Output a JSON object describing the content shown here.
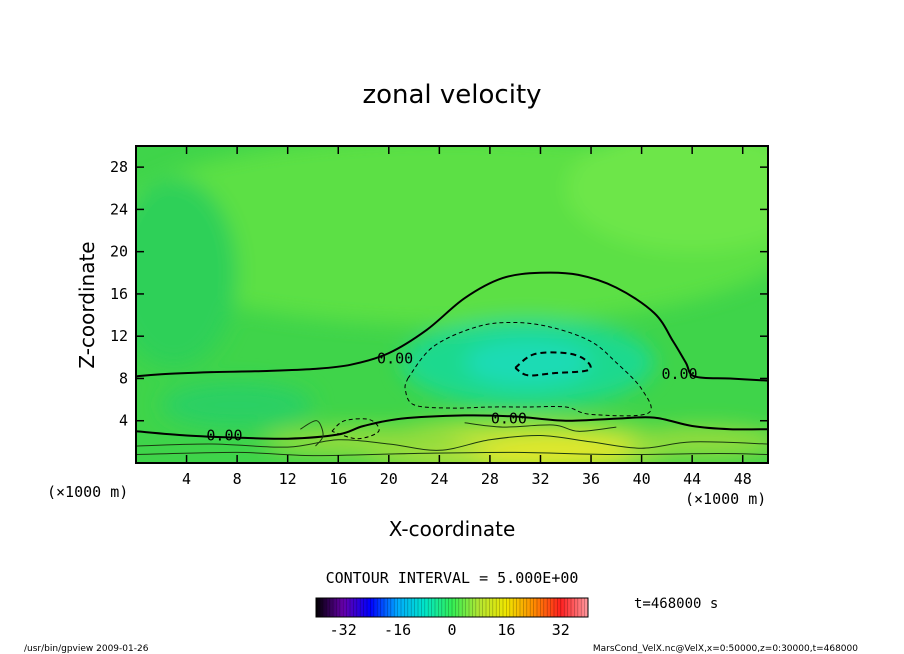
{
  "chart_data": {
    "type": "heatmap",
    "title": "zonal velocity",
    "xlabel": "X-coordinate",
    "ylabel": "Z-coordinate",
    "x_unit": "(×1000 m)",
    "z_unit": "(×1000 m)",
    "xlim": [
      0,
      50
    ],
    "zlim": [
      0,
      30
    ],
    "x_ticks": [
      4,
      8,
      12,
      16,
      20,
      24,
      28,
      32,
      36,
      40,
      44,
      48
    ],
    "z_ticks": [
      4,
      8,
      12,
      16,
      20,
      24,
      28
    ],
    "contour_interval_text": "CONTOUR INTERVAL = 5.000E+00",
    "contour_label": "0.00",
    "time_text": "t=468000 s",
    "colorbar": {
      "range": [
        -40,
        40
      ],
      "tick_values": [
        -32,
        -16,
        0,
        16,
        32
      ],
      "colors": [
        "#000000",
        "#6600aa",
        "#0000ff",
        "#00aaff",
        "#00e6c8",
        "#33ee55",
        "#b4e632",
        "#f0e600",
        "#ff8c00",
        "#ff2020",
        "#ff9aa0"
      ]
    },
    "zero_contour_solid": [
      [
        [
          0,
          8.2
        ],
        [
          2,
          8.4
        ],
        [
          6,
          8.6
        ],
        [
          10,
          8.7
        ],
        [
          14,
          8.9
        ],
        [
          17,
          9.3
        ],
        [
          20,
          10.4
        ],
        [
          23,
          12.6
        ],
        [
          26,
          15.6
        ],
        [
          29,
          17.5
        ],
        [
          32,
          18.0
        ],
        [
          35,
          17.8
        ],
        [
          38,
          16.6
        ],
        [
          41,
          14.2
        ],
        [
          42.5,
          11.5
        ],
        [
          43.5,
          9.5
        ],
        [
          44.2,
          8.2
        ],
        [
          47,
          8.0
        ],
        [
          50,
          7.8
        ]
      ],
      [
        [
          0,
          3.0
        ],
        [
          4,
          2.6
        ],
        [
          8,
          2.4
        ],
        [
          12,
          2.3
        ],
        [
          16,
          2.7
        ],
        [
          18,
          3.5
        ],
        [
          21,
          4.2
        ],
        [
          26,
          4.5
        ],
        [
          30,
          4.4
        ],
        [
          34,
          4.0
        ],
        [
          38,
          4.2
        ],
        [
          41,
          4.3
        ],
        [
          44,
          3.5
        ],
        [
          47,
          3.2
        ],
        [
          50,
          3.2
        ]
      ]
    ],
    "negative_contour_dashed": [
      [
        [
          30,
          9.0
        ],
        [
          31.5,
          10.3
        ],
        [
          34,
          10.4
        ],
        [
          35.5,
          9.8
        ],
        [
          35.8,
          8.8
        ],
        [
          33,
          8.5
        ],
        [
          31,
          8.3
        ],
        [
          30,
          9.0
        ]
      ],
      [
        [
          21.5,
          8.0
        ],
        [
          23.5,
          11.0
        ],
        [
          27,
          12.9
        ],
        [
          30,
          13.3
        ],
        [
          33,
          12.8
        ],
        [
          36,
          11.5
        ],
        [
          38,
          9.5
        ],
        [
          40,
          7.0
        ],
        [
          40.5,
          4.7
        ],
        [
          36,
          4.6
        ],
        [
          34,
          5.3
        ],
        [
          31,
          5.3
        ],
        [
          28,
          5.3
        ],
        [
          25,
          5.2
        ],
        [
          22,
          5.5
        ],
        [
          21.3,
          7.0
        ],
        [
          21.5,
          8.0
        ]
      ],
      [
        [
          15.5,
          3.0
        ],
        [
          16.5,
          4.0
        ],
        [
          18.5,
          4.1
        ],
        [
          19.2,
          3.0
        ],
        [
          17.5,
          2.3
        ],
        [
          15.5,
          3.0
        ]
      ]
    ]
  },
  "footer": {
    "left": "/usr/bin/gpview  2009-01-26",
    "right": "MarsCond_VelX.nc@VelX,x=0:50000,z=0:30000,t=468000"
  }
}
